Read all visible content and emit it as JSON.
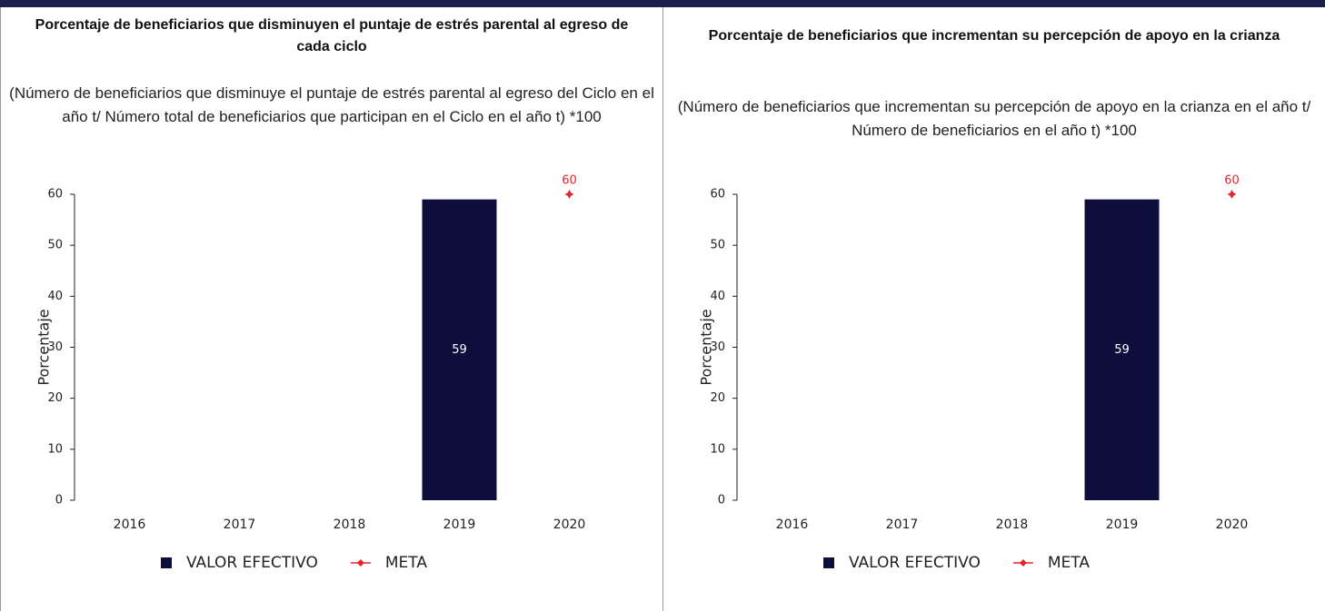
{
  "chart_data": [
    {
      "type": "bar",
      "title": "Porcentaje de beneficiarios que disminuyen el puntaje de estrés parental al egreso de cada ciclo",
      "subtitle": "(Número de beneficiarios que disminuye el puntaje de estrés parental al egreso del Ciclo en el año t/ Número total de beneficiarios que participan en el Ciclo en el año t) *100",
      "ylabel": "Porcentaje",
      "categories": [
        "2016",
        "2017",
        "2018",
        "2019",
        "2020"
      ],
      "series": [
        {
          "name": "VALOR EFECTIVO",
          "type": "bar",
          "color": "#0e0e3c",
          "values": [
            null,
            null,
            null,
            59,
            null
          ]
        },
        {
          "name": "META",
          "type": "point",
          "color": "#e3242b",
          "values": [
            null,
            null,
            null,
            null,
            60
          ]
        }
      ],
      "ylim": [
        0,
        60
      ],
      "yticks": [
        0,
        10,
        20,
        30,
        40,
        50,
        60
      ],
      "legend": "bottom"
    },
    {
      "type": "bar",
      "title": "Porcentaje de beneficiarios que incrementan su percepción de apoyo en la crianza",
      "subtitle": "(Número de beneficiarios que incrementan su percepción de apoyo en  la crianza en el año t/ Número de beneficiarios en el año t) *100",
      "ylabel": "Porcentaje",
      "categories": [
        "2016",
        "2017",
        "2018",
        "2019",
        "2020"
      ],
      "series": [
        {
          "name": "VALOR EFECTIVO",
          "type": "bar",
          "color": "#0e0e3c",
          "values": [
            null,
            null,
            null,
            59,
            null
          ]
        },
        {
          "name": "META",
          "type": "point",
          "color": "#e3242b",
          "values": [
            null,
            null,
            null,
            null,
            60
          ]
        }
      ],
      "ylim": [
        0,
        60
      ],
      "yticks": [
        0,
        10,
        20,
        30,
        40,
        50,
        60
      ],
      "legend": "bottom"
    }
  ]
}
